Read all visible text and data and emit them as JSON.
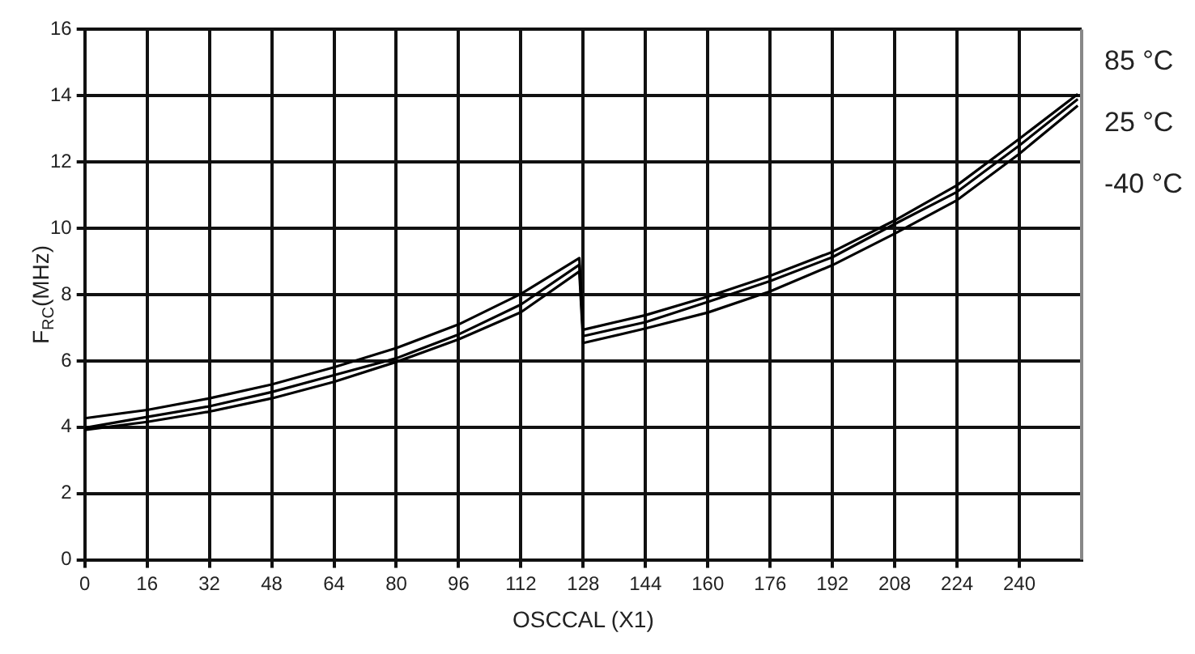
{
  "chart_data": {
    "type": "line",
    "xlabel": "OSCCAL (X1)",
    "ylabel": "F$_{RC}$(MHz)",
    "xlim": [
      0,
      256
    ],
    "xticks": [
      0,
      16,
      32,
      48,
      64,
      80,
      96,
      112,
      128,
      144,
      160,
      176,
      192,
      208,
      224,
      240
    ],
    "ylim": [
      0,
      16
    ],
    "yticks": [
      0,
      2,
      4,
      6,
      8,
      10,
      12,
      14,
      16
    ],
    "grid": true,
    "legend": false,
    "marker": "none",
    "line_style": "solid",
    "series": [
      {
        "name": "85 °C",
        "color": "#000000",
        "x": [
          0,
          16,
          32,
          48,
          64,
          80,
          96,
          112,
          127,
          128,
          144,
          160,
          176,
          192,
          208,
          224,
          240,
          255
        ],
        "values": [
          4.27,
          4.52,
          4.87,
          5.29,
          5.81,
          6.39,
          7.1,
          8.02,
          9.1,
          6.94,
          7.38,
          7.94,
          8.57,
          9.29,
          10.24,
          11.3,
          12.7,
          14.05
        ]
      },
      {
        "name": "25 °C",
        "color": "#000000",
        "x": [
          0,
          16,
          32,
          48,
          64,
          80,
          96,
          112,
          127,
          128,
          144,
          160,
          176,
          192,
          208,
          224,
          240,
          255
        ],
        "values": [
          3.98,
          4.31,
          4.63,
          5.06,
          5.57,
          6.08,
          6.8,
          7.7,
          8.9,
          6.75,
          7.17,
          7.78,
          8.41,
          9.13,
          10.13,
          11.1,
          12.5,
          13.9
        ]
      },
      {
        "name": "-40 °C",
        "color": "#000000",
        "x": [
          0,
          16,
          32,
          48,
          64,
          80,
          96,
          112,
          127,
          128,
          144,
          160,
          176,
          192,
          208,
          224,
          240,
          255
        ],
        "values": [
          3.92,
          4.16,
          4.47,
          4.87,
          5.37,
          5.97,
          6.65,
          7.47,
          8.7,
          6.54,
          6.98,
          7.46,
          8.1,
          8.89,
          9.84,
          10.85,
          12.25,
          13.7
        ]
      }
    ]
  }
}
